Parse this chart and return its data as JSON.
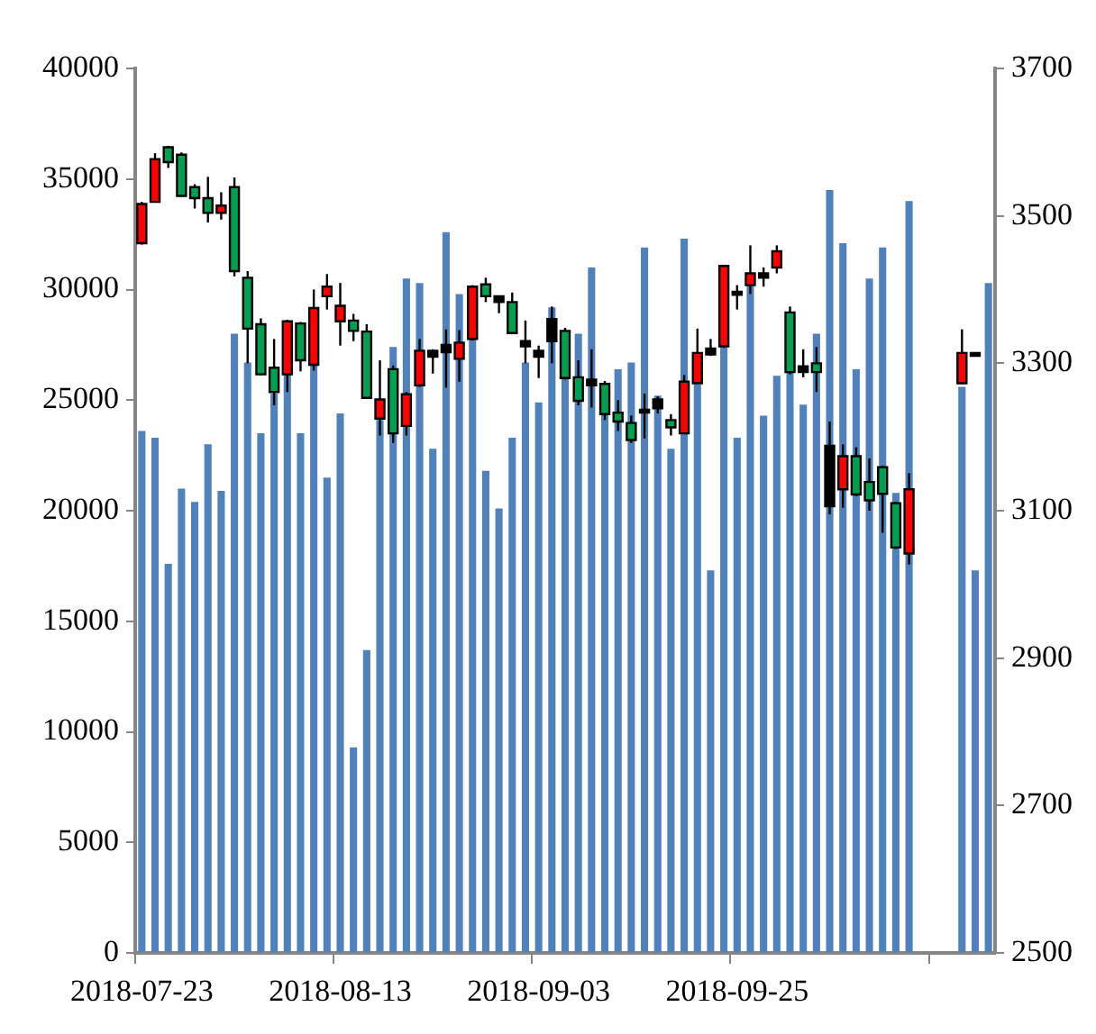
{
  "chart_data": {
    "type": "candlestick",
    "categories": [
      "2018-07-23",
      null,
      null,
      null,
      null,
      null,
      null,
      null,
      null,
      null,
      null,
      null,
      null,
      null,
      null,
      "2018-08-13",
      null,
      null,
      null,
      null,
      null,
      null,
      null,
      null,
      null,
      null,
      null,
      null,
      null,
      null,
      "2018-09-03",
      null,
      null,
      null,
      null,
      null,
      null,
      null,
      null,
      null,
      null,
      null,
      null,
      null,
      null,
      "2018-09-25",
      null,
      null,
      null,
      null,
      null,
      null,
      null,
      null,
      null,
      null,
      null,
      null,
      null,
      null,
      null,
      null,
      null,
      null,
      null
    ],
    "ylim": [
      0,
      40000
    ],
    "yticks": [
      0,
      5000,
      10000,
      15000,
      20000,
      25000,
      30000,
      35000,
      40000
    ],
    "y2lim": [
      2500,
      3700
    ],
    "y2ticks": [
      2500,
      2700,
      2900,
      3100,
      3300,
      3500,
      3700
    ],
    "grid": false,
    "legend": false,
    "series": [
      {
        "type": "bar",
        "color": "#4f81bd",
        "values": [
          23600,
          23300,
          17600,
          21000,
          20400,
          23000,
          20900,
          28000,
          26700,
          23500,
          25300,
          26200,
          23500,
          26600,
          21500,
          24400,
          9300,
          13700,
          24100,
          27400,
          30500,
          30300,
          22800,
          32600,
          29800,
          27800,
          21800,
          20100,
          23300,
          26700,
          24900,
          29200,
          26000,
          28000,
          31000,
          24400,
          26400,
          26700,
          31900,
          25200,
          22800,
          32300,
          25700,
          17300,
          27400,
          23300,
          30200,
          24300,
          26100,
          26300,
          24800,
          28000,
          34500,
          32100,
          26400,
          30500,
          31900,
          20800,
          34000,
          null,
          null,
          null,
          25600,
          17300,
          30300
        ]
      },
      {
        "axis": "y2",
        "ohlc": [
          [
            3463,
            3519,
            3461,
            3516
          ],
          [
            3519,
            3585,
            3518,
            3577
          ],
          [
            3593,
            3595,
            3565,
            3573
          ],
          [
            3583,
            3586,
            3526,
            3527
          ],
          [
            3539,
            3543,
            3510,
            3524
          ],
          [
            3524,
            3553,
            3491,
            3504
          ],
          [
            3504,
            3532,
            3495,
            3514
          ],
          [
            3539,
            3552,
            3418,
            3425
          ],
          [
            3416,
            3425,
            3300,
            3347
          ],
          [
            3353,
            3361,
            3284,
            3285
          ],
          [
            3294,
            3333,
            3243,
            3261
          ],
          [
            3285,
            3359,
            3261,
            3357
          ],
          [
            3354,
            3356,
            3289,
            3304
          ],
          [
            3298,
            3400,
            3290,
            3375
          ],
          [
            3391,
            3421,
            3373,
            3404
          ],
          [
            3357,
            3409,
            3324,
            3378
          ],
          [
            3358,
            3367,
            3330,
            3344
          ],
          [
            3343,
            3353,
            3252,
            3253
          ],
          [
            3225,
            3304,
            3202,
            3251
          ],
          [
            3292,
            3297,
            3192,
            3205
          ],
          [
            3215,
            3261,
            3202,
            3258
          ],
          [
            3270,
            3333,
            3268,
            3317
          ],
          [
            3317,
            3319,
            3286,
            3309
          ],
          [
            3325,
            3346,
            3267,
            3315
          ],
          [
            3306,
            3345,
            3275,
            3328
          ],
          [
            3333,
            3406,
            3331,
            3404
          ],
          [
            3407,
            3416,
            3383,
            3391
          ],
          [
            3391,
            3392,
            3368,
            3383
          ],
          [
            3383,
            3396,
            3340,
            3341
          ],
          [
            3330,
            3358,
            3300,
            3323
          ],
          [
            3317,
            3324,
            3280,
            3309
          ],
          [
            3360,
            3377,
            3300,
            3330
          ],
          [
            3344,
            3348,
            3278,
            3280
          ],
          [
            3281,
            3304,
            3243,
            3249
          ],
          [
            3278,
            3319,
            3240,
            3270
          ],
          [
            3272,
            3276,
            3223,
            3231
          ],
          [
            3233,
            3250,
            3208,
            3221
          ],
          [
            3219,
            3229,
            3192,
            3196
          ],
          [
            3237,
            3259,
            3198,
            3233
          ],
          [
            3251,
            3255,
            3232,
            3239
          ],
          [
            3223,
            3231,
            3202,
            3213
          ],
          [
            3205,
            3284,
            3204,
            3275
          ],
          [
            3273,
            3347,
            3272,
            3314
          ],
          [
            3320,
            3333,
            3310,
            3312
          ],
          [
            3323,
            3433,
            3321,
            3432
          ],
          [
            3397,
            3406,
            3373,
            3393
          ],
          [
            3406,
            3460,
            3394,
            3422
          ],
          [
            3422,
            3430,
            3404,
            3416
          ],
          [
            3430,
            3460,
            3422,
            3452
          ],
          [
            3369,
            3377,
            3285,
            3288
          ],
          [
            3296,
            3319,
            3281,
            3288
          ],
          [
            3300,
            3322,
            3261,
            3288
          ],
          [
            3188,
            3221,
            3095,
            3106
          ],
          [
            3129,
            3190,
            3104,
            3174
          ],
          [
            3174,
            3186,
            3120,
            3122
          ],
          [
            3139,
            3171,
            3100,
            3114
          ],
          [
            3159,
            3161,
            3070,
            3123
          ],
          [
            3110,
            3112,
            3048,
            3050
          ],
          [
            3042,
            3151,
            3027,
            3129
          ],
          null,
          null,
          null,
          [
            3273,
            3346,
            3272,
            3314
          ],
          [
            3314,
            3314,
            3310,
            3310
          ],
          null
        ],
        "colors": [
          "#ff0000",
          "#ff0000",
          "#00a050",
          "#00a050",
          "#00a050",
          "#00a050",
          "#ff0000",
          "#00a050",
          "#00a050",
          "#00a050",
          "#00a050",
          "#ff0000",
          "#00a050",
          "#ff0000",
          "#ff0000",
          "#ff0000",
          "#00a050",
          "#00a050",
          "#ff0000",
          "#00a050",
          "#ff0000",
          "#ff0000",
          "#000000",
          "#000000",
          "#ff0000",
          "#ff0000",
          "#00a050",
          "#000000",
          "#00a050",
          "#000000",
          "#000000",
          "#000000",
          "#00a050",
          "#00a050",
          "#000000",
          "#00a050",
          "#00a050",
          "#00a050",
          "#000000",
          "#000000",
          "#00a050",
          "#ff0000",
          "#ff0000",
          "#000000",
          "#ff0000",
          "#000000",
          "#ff0000",
          "#000000",
          "#ff0000",
          "#00a050",
          "#000000",
          "#00a050",
          "#000000",
          "#ff0000",
          "#00a050",
          "#00a050",
          "#00a050",
          "#00a050",
          "#ff0000",
          null,
          null,
          null,
          "#ff0000",
          "#000000",
          null
        ]
      }
    ]
  }
}
